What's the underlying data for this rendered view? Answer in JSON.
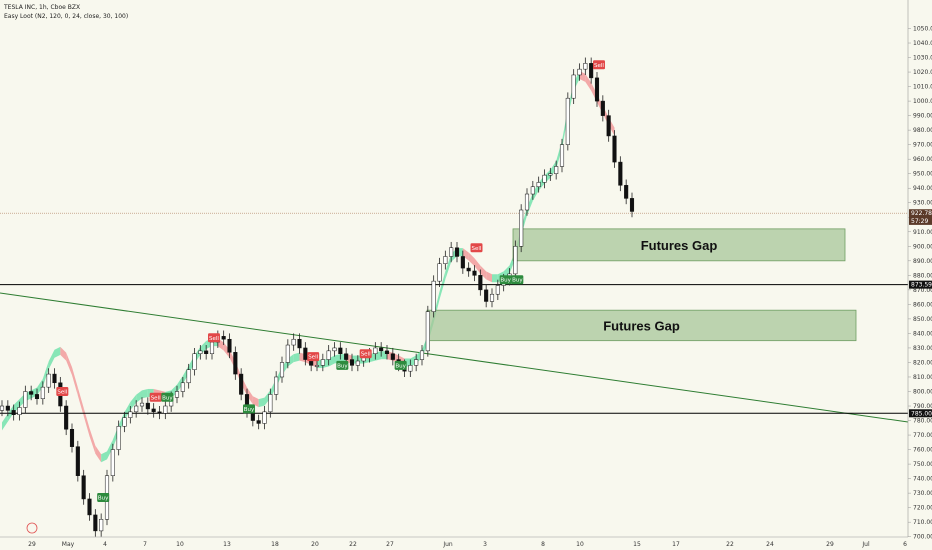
{
  "header": {
    "symbol_line": "TESLA INC, 1h, Cboe BZX",
    "indicator_line": "Easy Loot (N2, 120, 0, 24, close, 30, 100)"
  },
  "chart_data": {
    "type": "candlestick",
    "title": "TESLA INC, 1h, Cboe BZX",
    "ylim": [
      695,
      1058
    ],
    "y_ticks": [
      700,
      710,
      720,
      730,
      740,
      750,
      760,
      770,
      780,
      790,
      800,
      810,
      820,
      830,
      840,
      850,
      860,
      870,
      880,
      890,
      900,
      910,
      920,
      930,
      940,
      950,
      960,
      970,
      980,
      990,
      1000,
      1010,
      1020,
      1030,
      1040,
      1050
    ],
    "x_tick_labels": [
      "29",
      "May",
      "4",
      "7",
      "10",
      "13",
      "18",
      "20",
      "22",
      "27",
      "Jun",
      "3",
      "8",
      "10",
      "15",
      "17",
      "22",
      "24",
      "29",
      "Jul",
      "6"
    ],
    "horizontal_levels": [
      {
        "value": 873.59,
        "label": "873.59",
        "color": "#000000"
      },
      {
        "value": 785.0,
        "label": "785.00",
        "color": "#000000"
      }
    ],
    "price_labels": [
      {
        "value": 922.78,
        "label": "922.78",
        "color": "#5b3a29"
      },
      {
        "value": 917.5,
        "label": "57:29",
        "color": "#5b3a29"
      }
    ],
    "zones": [
      {
        "label": "Futures Gap",
        "y_top": 912,
        "y_bottom": 890,
        "color": "#a8c79a"
      },
      {
        "label": "Futures Gap",
        "y_top": 856,
        "y_bottom": 835,
        "color": "#a8c79a"
      }
    ],
    "signals": [
      {
        "label": "Sell",
        "price": 800
      },
      {
        "label": "Buy",
        "price": 727
      },
      {
        "label": "Sell",
        "price": 796
      },
      {
        "label": "Buy",
        "price": 796
      },
      {
        "label": "Sell",
        "price": 837
      },
      {
        "label": "Buy",
        "price": 788
      },
      {
        "label": "Sell",
        "price": 824
      },
      {
        "label": "Sell",
        "price": 826
      },
      {
        "label": "Buy",
        "price": 818
      },
      {
        "label": "Buy",
        "price": 818
      },
      {
        "label": "Sell",
        "price": 899
      },
      {
        "label": "Buy",
        "price": 877
      },
      {
        "label": "Buy",
        "price": 877
      },
      {
        "label": "Sell",
        "price": 1025
      }
    ],
    "series": [
      {
        "name": "close",
        "values": [
          790,
          787,
          784,
          789,
          800,
          798,
          795,
          803,
          812,
          806,
          790,
          774,
          762,
          742,
          726,
          715,
          704,
          712,
          742,
          760,
          776,
          782,
          786,
          790,
          792,
          788,
          786,
          785,
          790,
          796,
          800,
          806,
          815,
          826,
          828,
          826,
          834,
          838,
          836,
          827,
          812,
          798,
          786,
          780,
          778,
          786,
          798,
          810,
          820,
          832,
          836,
          830,
          822,
          818,
          818,
          822,
          828,
          830,
          826,
          822,
          818,
          821,
          824,
          826,
          830,
          828,
          826,
          822,
          818,
          814,
          818,
          822,
          828,
          855,
          876,
          888,
          893,
          899,
          893,
          885,
          883,
          880,
          870,
          862,
          867,
          873,
          877,
          881,
          900,
          925,
          936,
          941,
          944,
          949,
          950,
          955,
          970,
          1002,
          1018,
          1022,
          1026,
          1016,
          1000,
          990,
          976,
          958,
          942,
          933,
          924
        ]
      },
      {
        "name": "easy_loot_ribbon",
        "values": [
          776,
          782,
          788,
          792,
          796,
          798,
          800,
          806,
          818,
          826,
          828,
          824,
          814,
          800,
          786,
          772,
          760,
          754,
          756,
          764,
          774,
          783,
          790,
          795,
          798,
          799,
          799,
          798,
          797,
          798,
          802,
          808,
          815,
          822,
          828,
          832,
          834,
          834,
          831,
          826,
          818,
          808,
          800,
          794,
          792,
          793,
          798,
          806,
          814,
          820,
          823,
          824,
          823,
          821,
          819,
          819,
          820,
          822,
          823,
          823,
          822,
          822,
          822,
          823,
          824,
          825,
          825,
          824,
          822,
          820,
          820,
          822,
          826,
          836,
          850,
          866,
          880,
          892,
          896,
          896,
          893,
          889,
          884,
          880,
          878,
          878,
          880,
          884,
          894,
          910,
          924,
          934,
          941,
          946,
          950,
          956,
          970,
          992,
          1010,
          1018,
          1016,
          1010,
          1002,
          994,
          986,
          979
        ]
      }
    ]
  }
}
